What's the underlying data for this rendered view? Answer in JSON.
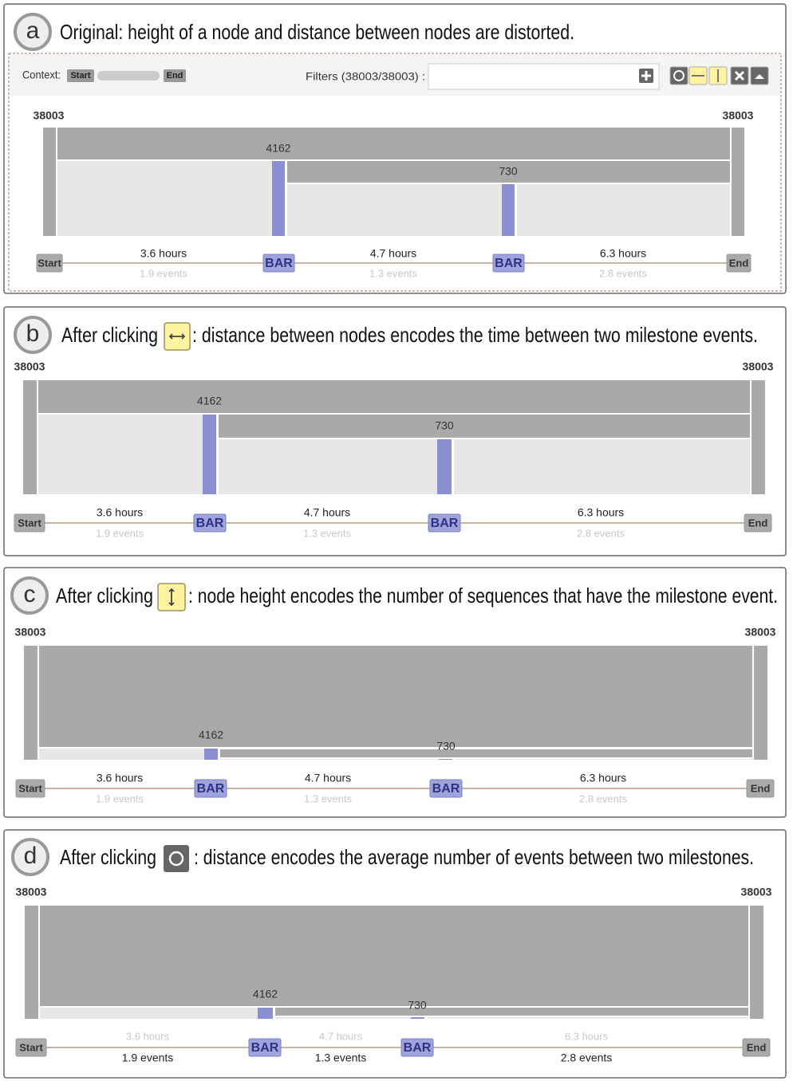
{
  "panels": [
    {
      "label": "a",
      "caption": "Original: height of a node and distance between nodes are distorted.",
      "toolbar": {
        "context_label": "Context:",
        "start": "Start",
        "end": "End",
        "filters": "Filters (38003/38003) :"
      },
      "counts": {
        "left": 38003,
        "right": 38003,
        "node1": 4162,
        "node2": 730
      },
      "nodes": [
        "Start",
        "BAR",
        "BAR",
        "End"
      ],
      "links": [
        {
          "time": "3.6 hours",
          "events": "1.9 events"
        },
        {
          "time": "4.7 hours",
          "events": "1.3 events"
        },
        {
          "time": "6.3 hours",
          "events": "2.8 events"
        }
      ]
    },
    {
      "label": "b",
      "caption_prefix": "After clicking",
      "caption_suffix": ": distance between nodes encodes the time between two milestone events.",
      "counts": {
        "left": 38003,
        "right": 38003,
        "node1": 4162,
        "node2": 730
      },
      "nodes": [
        "Start",
        "BAR",
        "BAR",
        "End"
      ],
      "links": [
        {
          "time": "3.6 hours",
          "events": "1.9 events"
        },
        {
          "time": "4.7 hours",
          "events": "1.3 events"
        },
        {
          "time": "6.3 hours",
          "events": "2.8 events"
        }
      ]
    },
    {
      "label": "c",
      "caption_prefix": "After clicking",
      "caption_suffix": ": node height encodes the number of sequences that have the milestone event.",
      "counts": {
        "left": 38003,
        "right": 38003,
        "node1": 4162,
        "node2": 730
      },
      "nodes": [
        "Start",
        "BAR",
        "BAR",
        "End"
      ],
      "links": [
        {
          "time": "3.6 hours",
          "events": "1.9 events"
        },
        {
          "time": "4.7 hours",
          "events": "1.3 events"
        },
        {
          "time": "6.3 hours",
          "events": "2.8 events"
        }
      ]
    },
    {
      "label": "d",
      "caption_prefix": "After clicking",
      "caption_suffix": ": distance encodes the average number of events between two milestones.",
      "counts": {
        "left": 38003,
        "right": 38003,
        "node1": 4162,
        "node2": 730
      },
      "nodes": [
        "Start",
        "BAR",
        "BAR",
        "End"
      ],
      "links": [
        {
          "time": "3.6 hours",
          "events": "1.9 events"
        },
        {
          "time": "4.7 hours",
          "events": "1.3 events"
        },
        {
          "time": "6.3 hours",
          "events": "2.8 events"
        }
      ]
    }
  ]
}
